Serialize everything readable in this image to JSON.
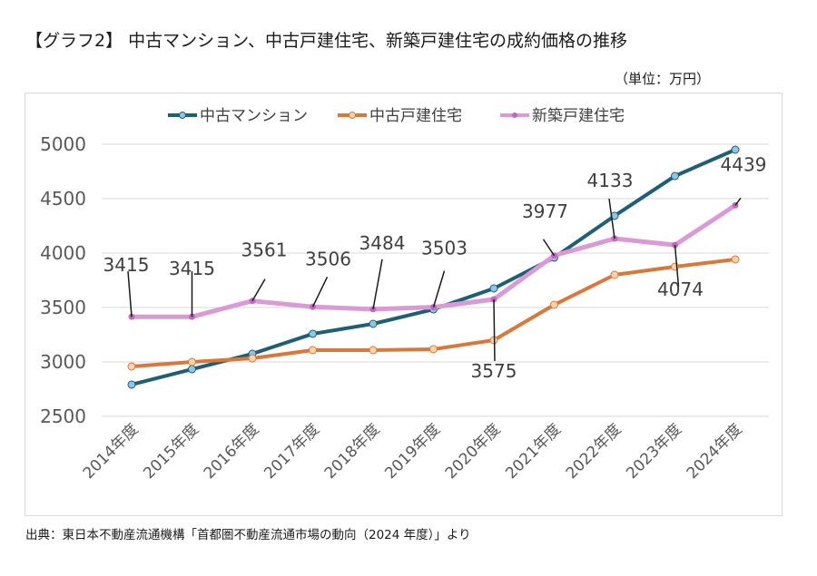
{
  "title": "【グラフ2】 中古マンション、中古戸建住宅、新築戸建住宅の成約価格の推移",
  "unit": "（単位：万円）",
  "source": "出典：東日本不動産流通機構「首都圏不動産流通市場の動向（2024 年度）」より",
  "chart_data": {
    "type": "line",
    "title": "中古マンション、中古戸建住宅、新築戸建住宅の成約価格の推移",
    "xlabel": "",
    "ylabel": "単位：万円",
    "ylim": [
      2500,
      5000
    ],
    "yticks": [
      2500,
      3000,
      3500,
      4000,
      4500,
      5000
    ],
    "grid": true,
    "legend_position": "top",
    "categories": [
      "2014年度",
      "2015年度",
      "2016年度",
      "2017年度",
      "2018年度",
      "2019年度",
      "2020年度",
      "2021年度",
      "2022年度",
      "2023年度",
      "2024年度"
    ],
    "series": [
      {
        "name": "中古マンション",
        "color": "#1f5f75",
        "marker_fill": "#8fc6e6",
        "values": [
          2792,
          2933,
          3075,
          3258,
          3350,
          3483,
          3675,
          3958,
          4342,
          4708,
          4950
        ],
        "show_labels": false
      },
      {
        "name": "中古戸建住宅",
        "color": "#d8783a",
        "marker_fill": "#fbd3ad",
        "values": [
          2958,
          3000,
          3033,
          3108,
          3108,
          3117,
          3200,
          3525,
          3800,
          3875,
          3942
        ],
        "show_labels": false
      },
      {
        "name": "新築戸建住宅",
        "color": "#d99ad6",
        "marker_fill": "#c368c0",
        "values": [
          3415,
          3415,
          3561,
          3506,
          3484,
          3503,
          3575,
          3977,
          4133,
          4074,
          4439
        ],
        "show_labels": true,
        "labels": [
          "3415",
          "3415",
          "3561",
          "3506",
          "3484",
          "3503",
          "3575",
          "3977",
          "4133",
          "4074",
          "4439"
        ]
      }
    ]
  }
}
